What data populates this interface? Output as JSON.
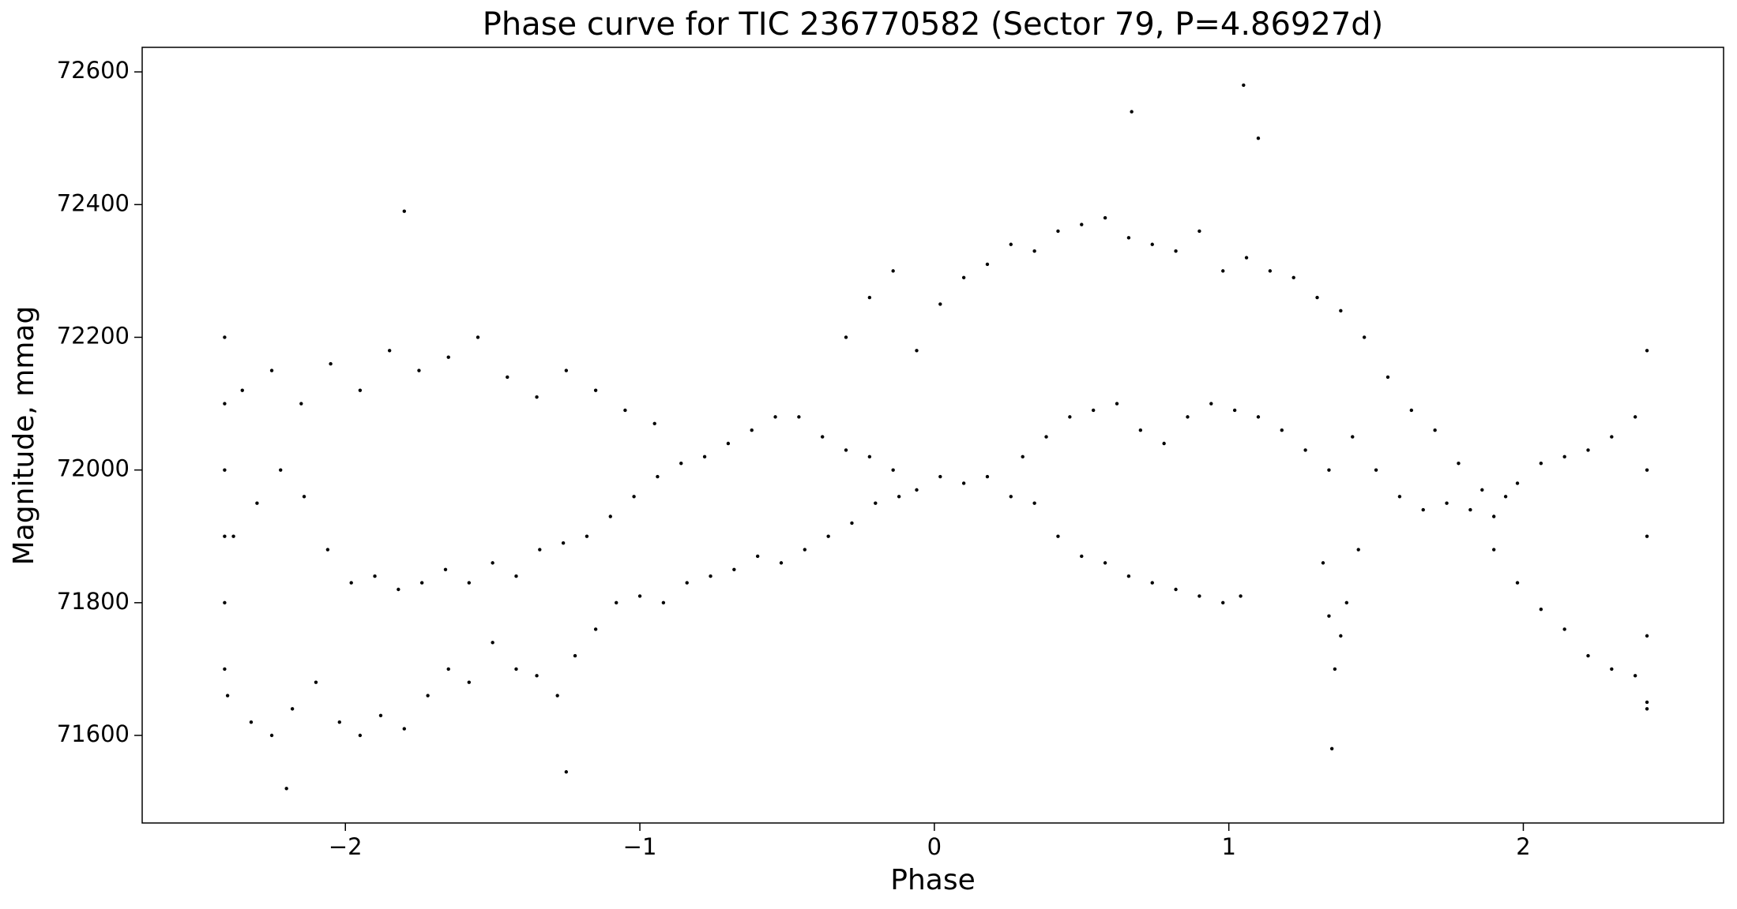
{
  "chart_data": {
    "type": "scatter",
    "title": "Phase curve for TIC 236770582 (Sector 79, P=4.86927d)",
    "x_label": "Phase",
    "y_label": "Magnitude, mmag",
    "color": "#000000",
    "xlim": [
      -2.69,
      2.68
    ],
    "ylim": [
      71468,
      72637
    ],
    "xticks": [
      {
        "value": -2,
        "label": "−2"
      },
      {
        "value": -1,
        "label": "−1"
      },
      0,
      1,
      2
    ],
    "yticks": [
      71600,
      71800,
      72000,
      72200,
      72400,
      72600
    ],
    "x": [
      -2.35,
      -2.25,
      -2.15,
      -2.05,
      -1.95,
      -1.85,
      -1.75,
      -1.65,
      -1.55,
      -1.45,
      -1.35,
      -1.25,
      -1.15,
      -1.05,
      -0.95,
      -2.4,
      -2.32,
      -2.25,
      -2.18,
      -2.1,
      -2.02,
      -1.95,
      -1.88,
      -1.8,
      -1.72,
      -1.65,
      -1.58,
      -1.5,
      -1.42,
      -1.35,
      -1.28,
      -1.22,
      -1.15,
      -1.08,
      -2.38,
      -2.3,
      -2.22,
      -2.14,
      -2.06,
      -1.98,
      -1.9,
      -1.82,
      -1.74,
      -1.66,
      -1.58,
      -1.5,
      -1.42,
      -1.34,
      -1.26,
      -1.18,
      -1.1,
      -1.02,
      -0.94,
      -0.86,
      -0.78,
      -0.7,
      -0.62,
      -0.54,
      -0.46,
      -0.38,
      -0.3,
      -0.22,
      -0.14,
      -0.06,
      -1.0,
      -0.92,
      -0.84,
      -0.76,
      -0.68,
      -0.6,
      -0.52,
      -0.44,
      -0.36,
      -0.28,
      -0.2,
      -0.12,
      -0.3,
      -0.22,
      -0.14,
      -0.06,
      0.02,
      0.1,
      0.18,
      0.26,
      0.34,
      0.42,
      0.5,
      0.58,
      0.66,
      0.74,
      0.82,
      0.9,
      0.98,
      1.06,
      1.14,
      1.22,
      1.3,
      1.38,
      1.46,
      1.54,
      1.62,
      1.7,
      1.78,
      1.86,
      1.94,
      0.02,
      0.1,
      0.18,
      0.26,
      0.34,
      0.42,
      0.5,
      0.58,
      0.66,
      0.74,
      0.82,
      0.9,
      0.98,
      1.04,
      0.3,
      0.38,
      0.46,
      0.54,
      0.62,
      0.7,
      0.78,
      0.86,
      0.94,
      1.02,
      1.1,
      1.18,
      1.26,
      1.34,
      1.42,
      1.5,
      1.58,
      1.66,
      1.74,
      1.82,
      1.9,
      1.98,
      2.06,
      2.14,
      2.22,
      2.3,
      2.38,
      2.42,
      1.9,
      1.98,
      2.06,
      2.14,
      2.22,
      2.3,
      2.38,
      2.42,
      1.32,
      1.34,
      1.36,
      1.38,
      1.4,
      1.44,
      -1.8,
      1.05,
      0.67,
      1.1,
      -2.2,
      1.35,
      -1.25,
      -2.41,
      -2.41,
      -2.41,
      -2.41,
      -2.41,
      -2.41,
      2.42,
      2.42,
      2.42,
      2.42
    ],
    "values": [
      72120,
      72150,
      72100,
      72160,
      72120,
      72180,
      72150,
      72170,
      72200,
      72140,
      72110,
      72150,
      72120,
      72090,
      72070,
      71660,
      71620,
      71600,
      71640,
      71680,
      71620,
      71600,
      71630,
      71610,
      71660,
      71700,
      71680,
      71740,
      71700,
      71690,
      71660,
      71720,
      71760,
      71800,
      71900,
      71950,
      72000,
      71960,
      71880,
      71830,
      71840,
      71820,
      71830,
      71850,
      71830,
      71860,
      71840,
      71880,
      71890,
      71900,
      71930,
      71960,
      71990,
      72010,
      72020,
      72040,
      72060,
      72080,
      72080,
      72050,
      72030,
      72020,
      72000,
      71970,
      71810,
      71800,
      71830,
      71840,
      71850,
      71870,
      71860,
      71880,
      71900,
      71920,
      71950,
      71960,
      72200,
      72260,
      72300,
      72180,
      72250,
      72290,
      72310,
      72340,
      72330,
      72360,
      72370,
      72380,
      72350,
      72340,
      72330,
      72360,
      72300,
      72320,
      72300,
      72290,
      72260,
      72240,
      72200,
      72140,
      72090,
      72060,
      72010,
      71970,
      71960,
      71990,
      71980,
      71990,
      71960,
      71950,
      71900,
      71870,
      71860,
      71840,
      71830,
      71820,
      71810,
      71800,
      71810,
      72020,
      72050,
      72080,
      72090,
      72100,
      72060,
      72040,
      72080,
      72100,
      72090,
      72080,
      72060,
      72030,
      72000,
      72050,
      72000,
      71960,
      71940,
      71950,
      71940,
      71930,
      71980,
      72010,
      72020,
      72030,
      72050,
      72080,
      72000,
      71880,
      71830,
      71790,
      71760,
      71720,
      71700,
      71690,
      71650,
      71860,
      71780,
      71700,
      71750,
      71800,
      71880,
      72390,
      72580,
      72540,
      72500,
      71520,
      71580,
      71545,
      72200,
      72100,
      72000,
      71900,
      71800,
      71700,
      72180,
      71900,
      71750,
      71640
    ]
  }
}
